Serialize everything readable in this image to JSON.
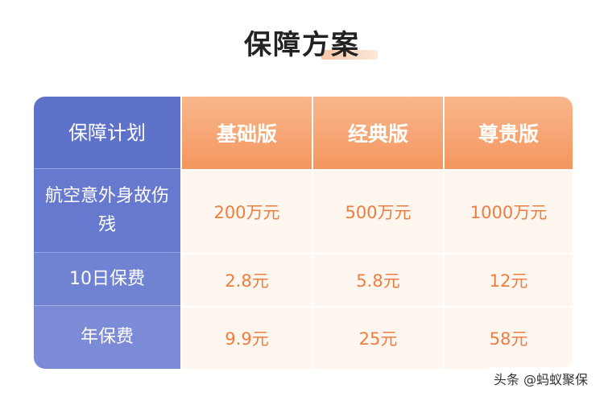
{
  "title": "保障方案",
  "table": {
    "header_label": "保障计划",
    "plans": [
      "基础版",
      "经典版",
      "尊贵版"
    ],
    "rows": [
      {
        "label": "航空意外身故伤残",
        "values": [
          "200万元",
          "500万元",
          "1000万元"
        ]
      },
      {
        "label": "10日保费",
        "values": [
          "2.8元",
          "5.8元",
          "12元"
        ]
      },
      {
        "label": "年保费",
        "values": [
          "9.9元",
          "25元",
          "58元"
        ]
      }
    ]
  },
  "watermark": "头条 @蚂蚁聚保",
  "colors": {
    "label_column": "#6679cf",
    "header_orange": "#f4965f",
    "value_text": "#ec7e3f"
  }
}
